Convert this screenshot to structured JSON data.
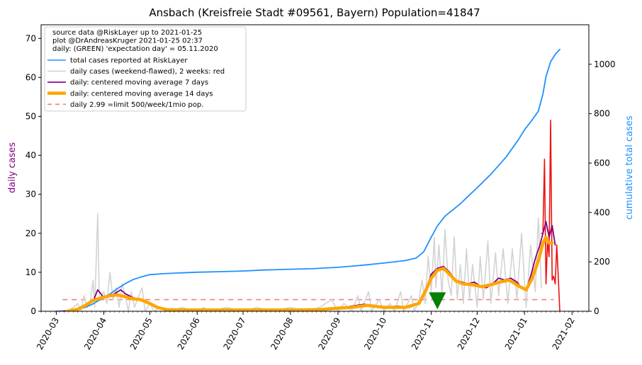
{
  "chart_data": {
    "type": "line",
    "title": "Ansbach (Kreisfreie Stadt #09561, Bayern) Population=41847",
    "ylabel_left": "daily cases",
    "ylabel_right": "cumulative total cases",
    "ylim_left": [
      0,
      73.5
    ],
    "ylim_right": [
      0,
      1160
    ],
    "left_ticks": [
      "0",
      "10",
      "20",
      "30",
      "40",
      "50",
      "60",
      "70"
    ],
    "right_ticks": [
      "0",
      "200",
      "400",
      "600",
      "800",
      "1000"
    ],
    "x_range": [
      "2020-02-20",
      "2021-02-12"
    ],
    "x_ticks": [
      "2020-03",
      "2020-04",
      "2020-05",
      "2020-06",
      "2020-07",
      "2020-08",
      "2020-09",
      "2020-10",
      "2020-11",
      "2020-12",
      "2021-01",
      "2021-02"
    ],
    "legend_position": "top-left",
    "legend_header": [
      "source data @RiskLayer up to 2021-01-25",
      "plot @DrAndreasKruger 2021-01-25 02:37",
      "daily: (GREEN) 'expectation day' = 05.11.2020"
    ],
    "legend": [
      {
        "label": "total cases reported at RiskLayer",
        "color": "#1e90ff",
        "style": "line"
      },
      {
        "label": "daily cases (weekend-flawed), 2 weeks: red",
        "color": "#d3d3d3",
        "style": "line"
      },
      {
        "label": "daily: centered moving average 7 days",
        "color": "#800080",
        "style": "line"
      },
      {
        "label": "daily: centered moving average 14 days",
        "color": "#ffa500",
        "style": "thick"
      },
      {
        "label": "daily 2.99 =limit 500/week/1mio pop.",
        "color": "#f08080",
        "style": "dashed"
      }
    ],
    "limit_line": {
      "value": 2.99,
      "x_start": "2020-03-05",
      "x_end": "2021-01-20"
    },
    "expectation_day": {
      "date": "2020-11-05",
      "y": 2.5
    },
    "series": [
      {
        "name": "total cases reported at RiskLayer",
        "axis": "right",
        "color": "#1e90ff",
        "points": [
          [
            "2020-03-01",
            0
          ],
          [
            "2020-03-10",
            2
          ],
          [
            "2020-03-15",
            8
          ],
          [
            "2020-03-20",
            16
          ],
          [
            "2020-03-25",
            30
          ],
          [
            "2020-03-30",
            48
          ],
          [
            "2020-04-05",
            70
          ],
          [
            "2020-04-10",
            92
          ],
          [
            "2020-04-15",
            112
          ],
          [
            "2020-04-20",
            128
          ],
          [
            "2020-04-25",
            138
          ],
          [
            "2020-05-01",
            148
          ],
          [
            "2020-05-10",
            152
          ],
          [
            "2020-05-20",
            155
          ],
          [
            "2020-06-01",
            158
          ],
          [
            "2020-06-15",
            160
          ],
          [
            "2020-07-01",
            163
          ],
          [
            "2020-07-15",
            167
          ],
          [
            "2020-08-01",
            170
          ],
          [
            "2020-08-15",
            172
          ],
          [
            "2020-09-01",
            178
          ],
          [
            "2020-09-15",
            185
          ],
          [
            "2020-10-01",
            195
          ],
          [
            "2020-10-15",
            205
          ],
          [
            "2020-10-22",
            215
          ],
          [
            "2020-10-27",
            240
          ],
          [
            "2020-11-01",
            300
          ],
          [
            "2020-11-05",
            345
          ],
          [
            "2020-11-10",
            385
          ],
          [
            "2020-11-15",
            410
          ],
          [
            "2020-11-20",
            435
          ],
          [
            "2020-11-25",
            465
          ],
          [
            "2020-12-01",
            500
          ],
          [
            "2020-12-10",
            555
          ],
          [
            "2020-12-20",
            625
          ],
          [
            "2020-12-28",
            695
          ],
          [
            "2021-01-01",
            735
          ],
          [
            "2021-01-06",
            775
          ],
          [
            "2021-01-10",
            810
          ],
          [
            "2021-01-13",
            880
          ],
          [
            "2021-01-15",
            950
          ],
          [
            "2021-01-18",
            1010
          ],
          [
            "2021-01-21",
            1040
          ],
          [
            "2021-01-24",
            1060
          ]
        ]
      },
      {
        "name": "daily cases (weekend-flawed), 2 weeks: red",
        "axis": "left",
        "color": "#d3d3d3",
        "points": [
          [
            "2020-03-01",
            0
          ],
          [
            "2020-03-08",
            0
          ],
          [
            "2020-03-12",
            1
          ],
          [
            "2020-03-15",
            2
          ],
          [
            "2020-03-17",
            0
          ],
          [
            "2020-03-19",
            4
          ],
          [
            "2020-03-21",
            1
          ],
          [
            "2020-03-23",
            2
          ],
          [
            "2020-03-25",
            8
          ],
          [
            "2020-03-26",
            1
          ],
          [
            "2020-03-28",
            25
          ],
          [
            "2020-03-29",
            3
          ],
          [
            "2020-04-01",
            5
          ],
          [
            "2020-04-03",
            2
          ],
          [
            "2020-04-05",
            10
          ],
          [
            "2020-04-07",
            3
          ],
          [
            "2020-04-09",
            6
          ],
          [
            "2020-04-11",
            1
          ],
          [
            "2020-04-13",
            7
          ],
          [
            "2020-04-15",
            4
          ],
          [
            "2020-04-17",
            0
          ],
          [
            "2020-04-19",
            5
          ],
          [
            "2020-04-21",
            1
          ],
          [
            "2020-04-23",
            3
          ],
          [
            "2020-04-26",
            6
          ],
          [
            "2020-04-28",
            0
          ],
          [
            "2020-05-01",
            2
          ],
          [
            "2020-05-04",
            0
          ],
          [
            "2020-05-08",
            1
          ],
          [
            "2020-05-15",
            0
          ],
          [
            "2020-05-22",
            1
          ],
          [
            "2020-06-01",
            0
          ],
          [
            "2020-06-05",
            1
          ],
          [
            "2020-06-10",
            0
          ],
          [
            "2020-06-20",
            1
          ],
          [
            "2020-07-01",
            0
          ],
          [
            "2020-07-10",
            1
          ],
          [
            "2020-07-20",
            0
          ],
          [
            "2020-08-01",
            1
          ],
          [
            "2020-08-10",
            0
          ],
          [
            "2020-08-20",
            1
          ],
          [
            "2020-08-28",
            3
          ],
          [
            "2020-09-01",
            0
          ],
          [
            "2020-09-05",
            2
          ],
          [
            "2020-09-10",
            0
          ],
          [
            "2020-09-14",
            4
          ],
          [
            "2020-09-16",
            0
          ],
          [
            "2020-09-21",
            5
          ],
          [
            "2020-09-23",
            0
          ],
          [
            "2020-09-28",
            3
          ],
          [
            "2020-10-01",
            0
          ],
          [
            "2020-10-05",
            2
          ],
          [
            "2020-10-08",
            0
          ],
          [
            "2020-10-12",
            5
          ],
          [
            "2020-10-14",
            0
          ],
          [
            "2020-10-19",
            4
          ],
          [
            "2020-10-21",
            0
          ],
          [
            "2020-10-24",
            3
          ],
          [
            "2020-10-26",
            8
          ],
          [
            "2020-10-28",
            2
          ],
          [
            "2020-10-30",
            14
          ],
          [
            "2020-11-01",
            5
          ],
          [
            "2020-11-03",
            19
          ],
          [
            "2020-11-04",
            6
          ],
          [
            "2020-11-06",
            17
          ],
          [
            "2020-11-08",
            4
          ],
          [
            "2020-11-10",
            21
          ],
          [
            "2020-11-12",
            8
          ],
          [
            "2020-11-14",
            4
          ],
          [
            "2020-11-16",
            19
          ],
          [
            "2020-11-18",
            3
          ],
          [
            "2020-11-20",
            12
          ],
          [
            "2020-11-22",
            2
          ],
          [
            "2020-11-24",
            16
          ],
          [
            "2020-11-26",
            3
          ],
          [
            "2020-11-28",
            12
          ],
          [
            "2020-12-01",
            1
          ],
          [
            "2020-12-03",
            14
          ],
          [
            "2020-12-05",
            3
          ],
          [
            "2020-12-08",
            18
          ],
          [
            "2020-12-10",
            2
          ],
          [
            "2020-12-13",
            15
          ],
          [
            "2020-12-15",
            4
          ],
          [
            "2020-12-18",
            16
          ],
          [
            "2020-12-21",
            2
          ],
          [
            "2020-12-24",
            16
          ],
          [
            "2020-12-27",
            3
          ],
          [
            "2020-12-30",
            20
          ],
          [
            "2021-01-02",
            1
          ],
          [
            "2021-01-05",
            17
          ],
          [
            "2021-01-08",
            5
          ],
          [
            "2021-01-10",
            24
          ],
          [
            "2021-01-12",
            6
          ]
        ]
      },
      {
        "name": "daily cases, last 2 weeks",
        "axis": "left",
        "color": "#ee1111",
        "points": [
          [
            "2021-01-12",
            20
          ],
          [
            "2021-01-13",
            20
          ],
          [
            "2021-01-14",
            39
          ],
          [
            "2021-01-15",
            7
          ],
          [
            "2021-01-16",
            18
          ],
          [
            "2021-01-17",
            14
          ],
          [
            "2021-01-18",
            49
          ],
          [
            "2021-01-19",
            8
          ],
          [
            "2021-01-20",
            9
          ],
          [
            "2021-01-21",
            7
          ],
          [
            "2021-01-22",
            17
          ],
          [
            "2021-01-23",
            9
          ],
          [
            "2021-01-24",
            0
          ]
        ]
      },
      {
        "name": "daily: centered moving average 7 days",
        "axis": "left",
        "color": "#800080",
        "points": [
          [
            "2020-03-05",
            0
          ],
          [
            "2020-03-15",
            0.5
          ],
          [
            "2020-03-20",
            1.5
          ],
          [
            "2020-03-25",
            2.5
          ],
          [
            "2020-03-28",
            5.5
          ],
          [
            "2020-04-01",
            3.5
          ],
          [
            "2020-04-05",
            3.8
          ],
          [
            "2020-04-08",
            4.5
          ],
          [
            "2020-04-12",
            5.5
          ],
          [
            "2020-04-15",
            4.5
          ],
          [
            "2020-04-20",
            3.5
          ],
          [
            "2020-04-25",
            3.0
          ],
          [
            "2020-05-01",
            2.0
          ],
          [
            "2020-05-05",
            1.0
          ],
          [
            "2020-05-10",
            0.5
          ],
          [
            "2020-05-20",
            0.3
          ],
          [
            "2020-06-01",
            0.3
          ],
          [
            "2020-06-15",
            0.2
          ],
          [
            "2020-07-01",
            0.3
          ],
          [
            "2020-07-15",
            0.2
          ],
          [
            "2020-08-01",
            0.3
          ],
          [
            "2020-08-15",
            0.3
          ],
          [
            "2020-09-01",
            0.8
          ],
          [
            "2020-09-10",
            1.3
          ],
          [
            "2020-09-18",
            1.8
          ],
          [
            "2020-09-25",
            1.5
          ],
          [
            "2020-10-01",
            1.0
          ],
          [
            "2020-10-10",
            1.3
          ],
          [
            "2020-10-18",
            1.0
          ],
          [
            "2020-10-25",
            2.5
          ],
          [
            "2020-10-29",
            6.0
          ],
          [
            "2020-11-01",
            9.5
          ],
          [
            "2020-11-05",
            11.0
          ],
          [
            "2020-11-09",
            11.5
          ],
          [
            "2020-11-13",
            10.0
          ],
          [
            "2020-11-17",
            8.0
          ],
          [
            "2020-11-21",
            7.5
          ],
          [
            "2020-11-25",
            7.0
          ],
          [
            "2020-11-29",
            7.5
          ],
          [
            "2020-12-03",
            6.5
          ],
          [
            "2020-12-07",
            6.0
          ],
          [
            "2020-12-11",
            7.0
          ],
          [
            "2020-12-15",
            8.5
          ],
          [
            "2020-12-19",
            8.0
          ],
          [
            "2020-12-23",
            8.5
          ],
          [
            "2020-12-27",
            7.5
          ],
          [
            "2020-12-30",
            6.0
          ],
          [
            "2021-01-02",
            5.5
          ],
          [
            "2021-01-05",
            9.0
          ],
          [
            "2021-01-08",
            13.5
          ],
          [
            "2021-01-11",
            17.0
          ],
          [
            "2021-01-13",
            20.0
          ],
          [
            "2021-01-15",
            23.0
          ],
          [
            "2021-01-17",
            19.0
          ],
          [
            "2021-01-19",
            22.0
          ],
          [
            "2021-01-21",
            17.0
          ]
        ]
      },
      {
        "name": "daily: centered moving average 14 days",
        "axis": "left",
        "color": "#ffa500",
        "points": [
          [
            "2020-03-08",
            0
          ],
          [
            "2020-03-15",
            0.5
          ],
          [
            "2020-03-20",
            1.5
          ],
          [
            "2020-03-25",
            2.8
          ],
          [
            "2020-03-31",
            3.5
          ],
          [
            "2020-04-05",
            4.0
          ],
          [
            "2020-04-10",
            4.2
          ],
          [
            "2020-04-15",
            3.7
          ],
          [
            "2020-04-20",
            3.2
          ],
          [
            "2020-04-25",
            3.0
          ],
          [
            "2020-05-01",
            2.0
          ],
          [
            "2020-05-06",
            1.0
          ],
          [
            "2020-05-12",
            0.4
          ],
          [
            "2020-05-25",
            0.3
          ],
          [
            "2020-06-15",
            0.3
          ],
          [
            "2020-07-10",
            0.3
          ],
          [
            "2020-08-01",
            0.3
          ],
          [
            "2020-08-20",
            0.4
          ],
          [
            "2020-09-01",
            0.8
          ],
          [
            "2020-09-10",
            1.0
          ],
          [
            "2020-09-20",
            1.5
          ],
          [
            "2020-10-01",
            1.0
          ],
          [
            "2020-10-15",
            1.0
          ],
          [
            "2020-10-24",
            2.0
          ],
          [
            "2020-10-28",
            5.0
          ],
          [
            "2020-11-01",
            8.5
          ],
          [
            "2020-11-05",
            10.5
          ],
          [
            "2020-11-09",
            11.0
          ],
          [
            "2020-11-13",
            9.5
          ],
          [
            "2020-11-17",
            7.8
          ],
          [
            "2020-11-22",
            7.0
          ],
          [
            "2020-11-28",
            6.8
          ],
          [
            "2020-12-04",
            6.3
          ],
          [
            "2020-12-10",
            6.8
          ],
          [
            "2020-12-16",
            7.5
          ],
          [
            "2020-12-22",
            8.0
          ],
          [
            "2020-12-28",
            6.5
          ],
          [
            "2021-01-02",
            5.5
          ],
          [
            "2021-01-06",
            8.5
          ],
          [
            "2021-01-10",
            13.0
          ],
          [
            "2021-01-13",
            17.5
          ],
          [
            "2021-01-15",
            19.0
          ],
          [
            "2021-01-17",
            17.5
          ],
          [
            "2021-01-19",
            17.5
          ]
        ]
      }
    ]
  }
}
